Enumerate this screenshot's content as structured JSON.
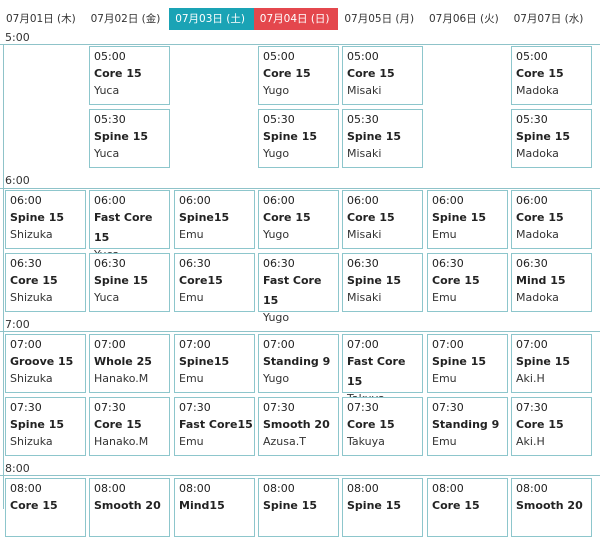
{
  "days": [
    {
      "label": "07月01日 (木)",
      "type": "normal"
    },
    {
      "label": "07月02日 (金)",
      "type": "normal"
    },
    {
      "label": "07月03日 (土)",
      "type": "sat"
    },
    {
      "label": "07月04日 (日)",
      "type": "sun"
    },
    {
      "label": "07月05日 (月)",
      "type": "normal"
    },
    {
      "label": "07月06日 (火)",
      "type": "normal"
    },
    {
      "label": "07月07日 (水)",
      "type": "normal"
    }
  ],
  "hours": [
    "5:00",
    "6:00",
    "7:00",
    "8:00"
  ],
  "lessons": {
    "r0500": [
      null,
      {
        "time": "05:00",
        "class": "Core 15",
        "instructor": "Yuca"
      },
      null,
      {
        "time": "05:00",
        "class": "Core 15",
        "instructor": "Yugo"
      },
      {
        "time": "05:00",
        "class": "Core 15",
        "instructor": "Misaki"
      },
      null,
      {
        "time": "05:00",
        "class": "Core 15",
        "instructor": "Madoka"
      }
    ],
    "r0530": [
      null,
      {
        "time": "05:30",
        "class": "Spine 15",
        "instructor": "Yuca"
      },
      null,
      {
        "time": "05:30",
        "class": "Spine 15",
        "instructor": "Yugo"
      },
      {
        "time": "05:30",
        "class": "Spine 15",
        "instructor": "Misaki"
      },
      null,
      {
        "time": "05:30",
        "class": "Spine 15",
        "instructor": "Madoka"
      }
    ],
    "r0600": [
      {
        "time": "06:00",
        "class": "Spine 15",
        "instructor": "Shizuka"
      },
      {
        "time": "06:00",
        "class": "Fast Core 15",
        "instructor": "Yuca"
      },
      {
        "time": "06:00",
        "class": "Spine15",
        "instructor": "Emu"
      },
      {
        "time": "06:00",
        "class": "Core 15",
        "instructor": "Yugo"
      },
      {
        "time": "06:00",
        "class": "Core 15",
        "instructor": "Misaki"
      },
      {
        "time": "06:00",
        "class": "Spine 15",
        "instructor": "Emu"
      },
      {
        "time": "06:00",
        "class": "Core 15",
        "instructor": "Madoka"
      }
    ],
    "r0630": [
      {
        "time": "06:30",
        "class": "Core 15",
        "instructor": "Shizuka"
      },
      {
        "time": "06:30",
        "class": "Spine 15",
        "instructor": "Yuca"
      },
      {
        "time": "06:30",
        "class": "Core15",
        "instructor": "Emu"
      },
      {
        "time": "06:30",
        "class": "Fast Core 15",
        "instructor": "Yugo"
      },
      {
        "time": "06:30",
        "class": "Spine 15",
        "instructor": "Misaki"
      },
      {
        "time": "06:30",
        "class": "Core 15",
        "instructor": "Emu"
      },
      {
        "time": "06:30",
        "class": "Mind 15",
        "instructor": "Madoka"
      }
    ],
    "r0700": [
      {
        "time": "07:00",
        "class": "Groove 15",
        "instructor": "Shizuka"
      },
      {
        "time": "07:00",
        "class": "Whole 25",
        "instructor": "Hanako.M"
      },
      {
        "time": "07:00",
        "class": "Spine15",
        "instructor": "Emu"
      },
      {
        "time": "07:00",
        "class": "Standing 9",
        "instructor": "Yugo"
      },
      {
        "time": "07:00",
        "class": "Fast Core 15",
        "instructor": "Takuya"
      },
      {
        "time": "07:00",
        "class": "Spine 15",
        "instructor": "Emu"
      },
      {
        "time": "07:00",
        "class": "Spine 15",
        "instructor": "Aki.H"
      }
    ],
    "r0730": [
      {
        "time": "07:30",
        "class": "Spine 15",
        "instructor": "Shizuka"
      },
      {
        "time": "07:30",
        "class": "Core 15",
        "instructor": "Hanako.M"
      },
      {
        "time": "07:30",
        "class": "Fast Core15",
        "instructor": "Emu"
      },
      {
        "time": "07:30",
        "class": "Smooth 20",
        "instructor": "Azusa.T"
      },
      {
        "time": "07:30",
        "class": "Core 15",
        "instructor": "Takuya"
      },
      {
        "time": "07:30",
        "class": "Standing 9",
        "instructor": "Emu"
      },
      {
        "time": "07:30",
        "class": "Core 15",
        "instructor": "Aki.H"
      }
    ],
    "r0800": [
      {
        "time": "08:00",
        "class": "Core 15",
        "instructor": ""
      },
      {
        "time": "08:00",
        "class": "Smooth 20",
        "instructor": ""
      },
      {
        "time": "08:00",
        "class": "Mind15",
        "instructor": ""
      },
      {
        "time": "08:00",
        "class": "Spine 15",
        "instructor": ""
      },
      {
        "time": "08:00",
        "class": "Spine 15",
        "instructor": ""
      },
      {
        "time": "08:00",
        "class": "Core 15",
        "instructor": ""
      },
      {
        "time": "08:00",
        "class": "Smooth 20",
        "instructor": ""
      }
    ]
  }
}
